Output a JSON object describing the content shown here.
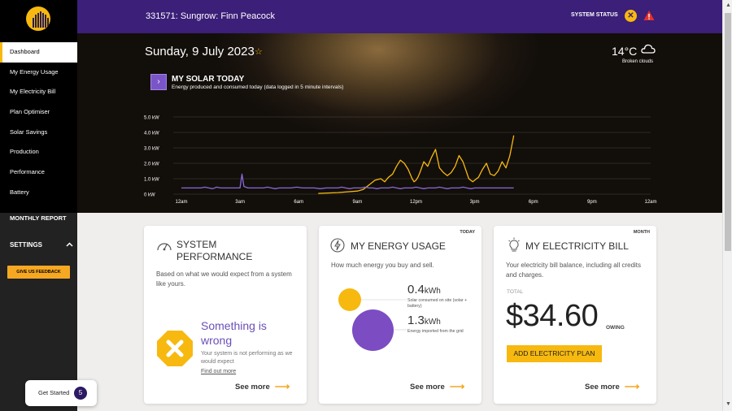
{
  "colors": {
    "accent": "#f7b90f",
    "brand_purple": "#3b1f78",
    "solar_line": "#f7b90f",
    "usage_line": "#8a6ad8"
  },
  "sidebar": {
    "items": [
      {
        "label": "Dashboard",
        "active": true
      },
      {
        "label": "My Energy Usage"
      },
      {
        "label": "My Electricity Bill"
      },
      {
        "label": "Plan Optimiser"
      },
      {
        "label": "Solar Savings"
      },
      {
        "label": "Production"
      },
      {
        "label": "Performance"
      },
      {
        "label": "Battery"
      }
    ],
    "monthly_report": "MONTHLY REPORT",
    "settings": "SETTINGS",
    "feedback": "GIVE US FEEDBACK"
  },
  "header": {
    "site_title": "331571: Sungrow: Finn Peacock",
    "system_status": "SYSTEM STATUS",
    "status_icon": "x-circle-icon",
    "warning_icon": "warning-triangle-icon"
  },
  "hero": {
    "date": "Sunday, 9 July 2023",
    "temperature": "14°C",
    "weather": "Broken clouds",
    "weather_icon": "cloud-icon",
    "solar_title": "MY SOLAR TODAY",
    "solar_subtitle": "Energy produced and consumed today (data logged in 5 minute intervals)"
  },
  "chart_data": {
    "type": "line",
    "title": "MY SOLAR TODAY",
    "ytick_labels": [
      "0 kW",
      "1.0 kW",
      "2.0 kW",
      "3.0 kW",
      "4.0 kW",
      "5.0 kW"
    ],
    "xtick_labels": [
      "12am",
      "3am",
      "6am",
      "9am",
      "12pm",
      "3pm",
      "6pm",
      "9pm",
      "12am"
    ],
    "ylim": [
      0,
      5
    ],
    "xlim": [
      0,
      24
    ],
    "grid": true,
    "series": [
      {
        "role": "produced",
        "color": "#f7b90f",
        "x": [
          7.0,
          8.0,
          9.0,
          9.3,
          9.6,
          9.9,
          10.2,
          10.4,
          10.6,
          10.8,
          11.0,
          11.2,
          11.4,
          11.6,
          11.8,
          11.9,
          12.0,
          12.1,
          12.2,
          12.4,
          12.6,
          12.8,
          13.0,
          13.2,
          13.4,
          13.6,
          13.8,
          14.0,
          14.2,
          14.4,
          14.7,
          14.9,
          15.0,
          15.2,
          15.4,
          15.6,
          15.8,
          16.0,
          16.2,
          16.4,
          16.6,
          16.8,
          17.0
        ],
        "y": [
          0.05,
          0.1,
          0.2,
          0.3,
          0.6,
          0.9,
          1.0,
          0.8,
          1.1,
          1.3,
          1.8,
          2.2,
          2.0,
          1.6,
          1.0,
          0.8,
          0.9,
          1.1,
          1.4,
          2.1,
          1.8,
          2.4,
          2.9,
          1.7,
          1.4,
          1.2,
          1.4,
          1.8,
          2.5,
          2.1,
          1.0,
          0.8,
          0.9,
          1.1,
          1.6,
          2.0,
          1.3,
          1.2,
          1.5,
          2.1,
          1.7,
          2.5,
          3.8
        ]
      },
      {
        "role": "consumed",
        "color": "#8a6ad8",
        "x": [
          0,
          0.5,
          1.0,
          1.2,
          1.4,
          1.6,
          1.8,
          2.0,
          2.5,
          3.0,
          3.1,
          3.2,
          3.4,
          3.6,
          3.8,
          4.0,
          4.2,
          4.4,
          4.6,
          4.8,
          5.0,
          5.3,
          5.6,
          5.9,
          6.2,
          6.5,
          6.8,
          7.1,
          7.4,
          7.7,
          8.0,
          8.2,
          8.4,
          8.6,
          8.8,
          9.0,
          9.2,
          9.4,
          9.6,
          9.8,
          10.0,
          10.2,
          10.4,
          10.6,
          10.8,
          11.0,
          11.2,
          11.4,
          11.6,
          11.8,
          12.0,
          12.2,
          12.4,
          12.6,
          12.8,
          13.0,
          13.2,
          13.4,
          13.6,
          13.8,
          14.0,
          14.2,
          14.4,
          14.6,
          14.8,
          15.0,
          15.5,
          16.0,
          16.5,
          17.0
        ],
        "y": [
          0.4,
          0.4,
          0.4,
          0.45,
          0.4,
          0.35,
          0.45,
          0.4,
          0.4,
          0.4,
          1.3,
          0.5,
          0.4,
          0.4,
          0.4,
          0.4,
          0.4,
          0.45,
          0.4,
          0.35,
          0.4,
          0.4,
          0.4,
          0.45,
          0.4,
          0.4,
          0.4,
          0.35,
          0.4,
          0.4,
          0.4,
          0.45,
          0.4,
          0.35,
          0.4,
          0.4,
          0.4,
          0.45,
          0.4,
          0.4,
          0.35,
          0.4,
          0.4,
          0.4,
          0.45,
          0.4,
          0.35,
          0.4,
          0.4,
          0.4,
          0.45,
          0.4,
          0.35,
          0.4,
          0.4,
          0.4,
          0.45,
          0.4,
          0.35,
          0.4,
          0.4,
          0.4,
          0.45,
          0.4,
          0.35,
          0.4,
          0.4,
          0.4,
          0.4,
          0.4
        ]
      }
    ]
  },
  "cards": {
    "performance": {
      "title": "SYSTEM PERFORMANCE",
      "icon": "gauge-icon",
      "desc": "Based on what we would expect from a system like yours.",
      "status_title": "Something is wrong",
      "status_desc": "Your system is not performing as we would expect",
      "find_out": "Find out more",
      "see_more": "See more"
    },
    "usage": {
      "title": "MY ENERGY USAGE",
      "tag": "TODAY",
      "icon": "lightning-icon",
      "desc": "How much energy you buy and sell.",
      "solar_value": "0.4",
      "solar_unit": "kWh",
      "solar_label": "Solar consumed on site (solar + battery)",
      "grid_value": "1.3",
      "grid_unit": "kWh",
      "grid_label": "Energy imported from the grid",
      "see_more": "See more"
    },
    "bill": {
      "title": "MY ELECTRICITY BILL",
      "tag": "MONTH",
      "icon": "lightbulb-icon",
      "desc": "Your electricity bill balance, including all credits and charges.",
      "total_label": "TOTAL",
      "amount": "$34.60",
      "owing": "OWING",
      "add_plan": "ADD ELECTRICITY PLAN",
      "see_more": "See more"
    }
  },
  "get_started": {
    "label": "Get Started",
    "count": "5"
  }
}
